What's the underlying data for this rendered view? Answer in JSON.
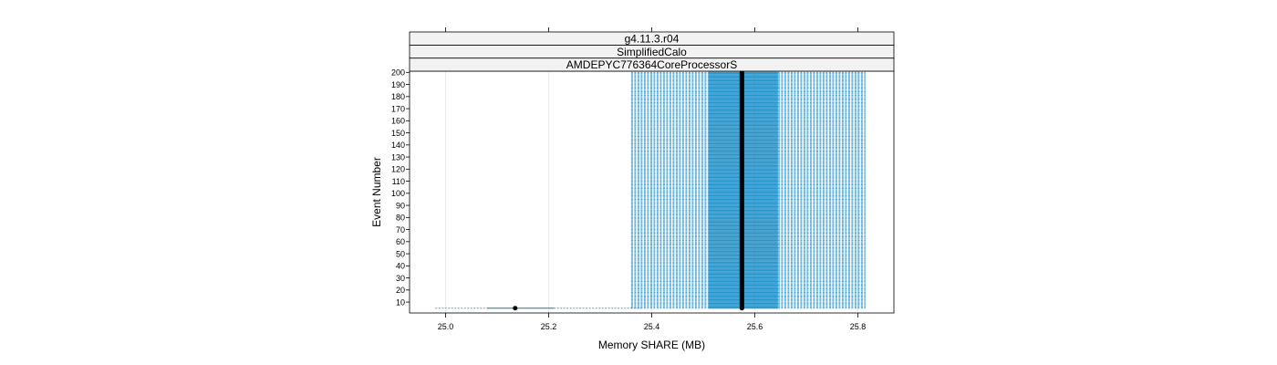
{
  "chart_data": {
    "type": "box",
    "strips": [
      "g4.11.3.r04",
      "SimplifiedCalo",
      "AMDEPYC776364CoreProcessorS"
    ],
    "xlabel": "Memory SHARE (MB)",
    "ylabel": "Event Number",
    "xlim": [
      24.93,
      25.87
    ],
    "ylim": [
      1,
      201
    ],
    "x_ticks": [
      25.0,
      25.2,
      25.4,
      25.6,
      25.8
    ],
    "x_tick_labels": [
      "25.0",
      "25.2",
      "25.4",
      "25.6",
      "25.8"
    ],
    "y_ticks": [
      10,
      20,
      30,
      40,
      50,
      60,
      70,
      80,
      90,
      100,
      110,
      120,
      130,
      140,
      150,
      160,
      170,
      180,
      190,
      200
    ],
    "y_tick_labels": [
      "10",
      "20",
      "30",
      "40",
      "50",
      "60",
      "70",
      "80",
      "90",
      "100",
      "110",
      "120",
      "130",
      "140",
      "150",
      "160",
      "170",
      "180",
      "190",
      "200"
    ],
    "grid": true,
    "colors": {
      "box": "#0080c0",
      "median": "#000000",
      "strip_bg": "#f2f2f2",
      "grid": "#e6e6e6"
    },
    "series": [
      {
        "x_min": 24.98,
        "q1": 25.08,
        "median": 25.135,
        "q3": 25.21,
        "x_max": 25.38,
        "y_from": 5,
        "y_to": 5
      },
      {
        "x_min": 25.36,
        "q1": 25.51,
        "median": 25.575,
        "q3": 25.645,
        "x_max": 25.815,
        "y_from": 5,
        "y_to": 200
      }
    ]
  }
}
